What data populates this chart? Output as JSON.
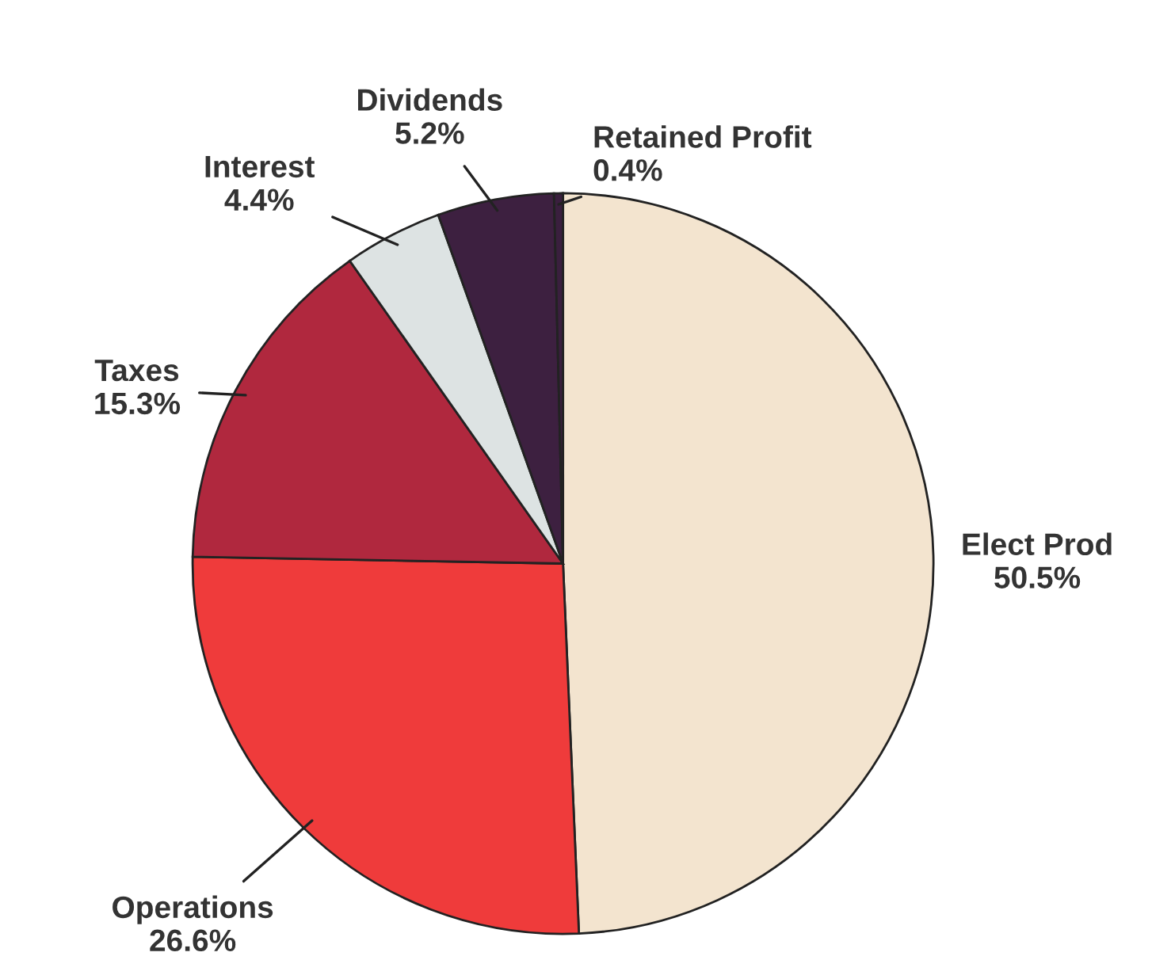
{
  "chart_data": {
    "type": "pie",
    "categories": [
      "Elect Prod",
      "Operations",
      "Taxes",
      "Interest",
      "Dividends",
      "Retained Profit"
    ],
    "values": [
      50.5,
      26.6,
      15.3,
      4.4,
      5.2,
      0.4
    ],
    "value_labels": [
      "50.5%",
      "26.6%",
      "15.3%",
      "4.4%",
      "5.2%",
      "0.4%"
    ],
    "colors": [
      "#f3e4cf",
      "#ef3b3b",
      "#b0283e",
      "#dde3e3",
      "#3d2040",
      "#3a1f3e"
    ],
    "legend": false
  }
}
